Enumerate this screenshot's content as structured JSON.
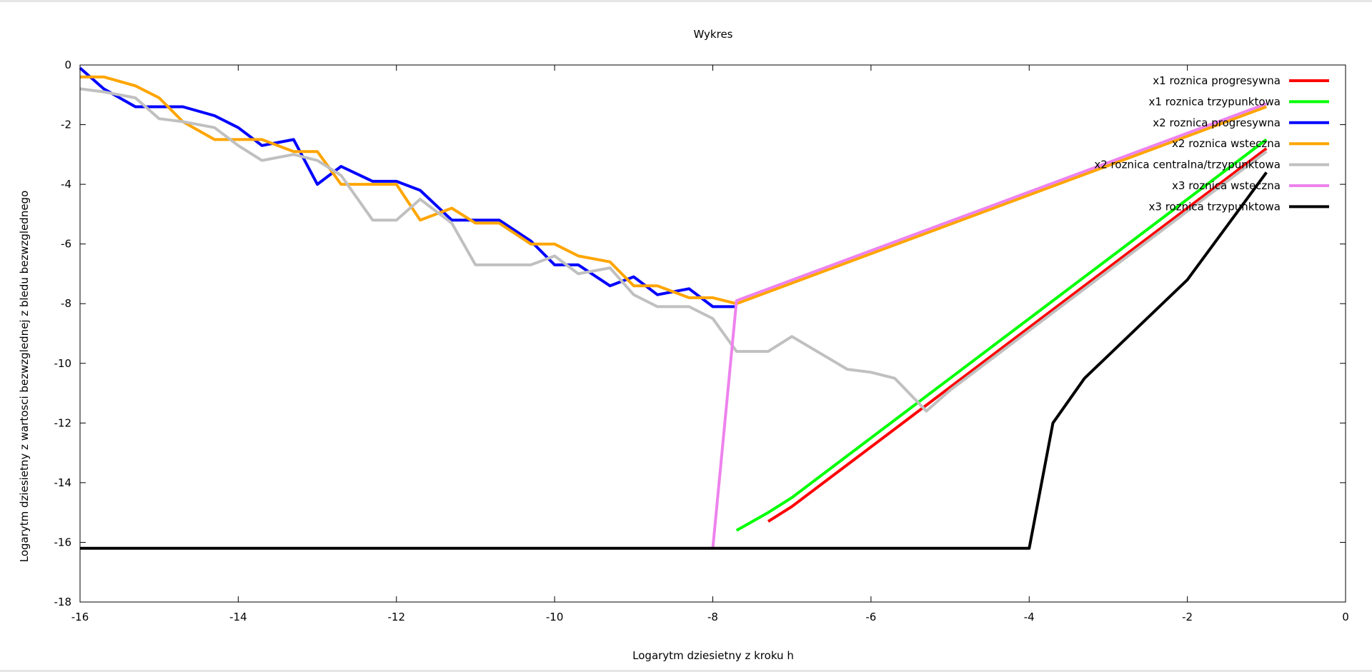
{
  "chart_data": {
    "type": "line",
    "title": "Wykres",
    "xlabel": "Logarytm dziesietny z kroku h",
    "ylabel": "Logarytm dziesietny z wartosci bezwzglednej z bledu bezwzglednego",
    "xlim": [
      -16,
      0
    ],
    "ylim": [
      -18,
      0
    ],
    "xticks": [
      -16,
      -14,
      -12,
      -10,
      -8,
      -6,
      -4,
      -2,
      0
    ],
    "yticks": [
      0,
      -2,
      -4,
      -6,
      -8,
      -10,
      -12,
      -14,
      -16,
      -18
    ],
    "grid": false,
    "legend_position": "top-right",
    "series": [
      {
        "name": "x1 roznica progresywna",
        "color": "#ff0000",
        "points": [
          [
            -7.3,
            -15.3
          ],
          [
            -7.0,
            -14.8
          ],
          [
            -6.0,
            -12.8
          ],
          [
            -5.0,
            -10.8
          ],
          [
            -4.0,
            -8.8
          ],
          [
            -3.0,
            -6.8
          ],
          [
            -2.0,
            -4.8
          ],
          [
            -1.0,
            -2.8
          ]
        ]
      },
      {
        "name": "x1 roznica trzypunktowa",
        "color": "#00ff00",
        "points": [
          [
            -7.7,
            -15.6
          ],
          [
            -7.3,
            -15.0
          ],
          [
            -7.0,
            -14.5
          ],
          [
            -6.0,
            -12.5
          ],
          [
            -5.0,
            -10.5
          ],
          [
            -4.0,
            -8.5
          ],
          [
            -3.0,
            -6.5
          ],
          [
            -2.0,
            -4.5
          ],
          [
            -1.0,
            -2.5
          ]
        ]
      },
      {
        "name": "x2 roznica progresywna",
        "color": "#0000ff",
        "points": [
          [
            -16.0,
            -0.1
          ],
          [
            -15.7,
            -0.8
          ],
          [
            -15.3,
            -1.4
          ],
          [
            -15.0,
            -1.4
          ],
          [
            -14.7,
            -1.4
          ],
          [
            -14.3,
            -1.7
          ],
          [
            -14.0,
            -2.1
          ],
          [
            -13.7,
            -2.7
          ],
          [
            -13.3,
            -2.5
          ],
          [
            -13.0,
            -4.0
          ],
          [
            -12.7,
            -3.4
          ],
          [
            -12.3,
            -3.9
          ],
          [
            -12.0,
            -3.9
          ],
          [
            -11.7,
            -4.2
          ],
          [
            -11.3,
            -5.2
          ],
          [
            -11.0,
            -5.2
          ],
          [
            -10.7,
            -5.2
          ],
          [
            -10.3,
            -5.9
          ],
          [
            -10.0,
            -6.7
          ],
          [
            -9.7,
            -6.7
          ],
          [
            -9.3,
            -7.4
          ],
          [
            -9.0,
            -7.1
          ],
          [
            -8.7,
            -7.7
          ],
          [
            -8.3,
            -7.5
          ],
          [
            -8.0,
            -8.1
          ],
          [
            -7.7,
            -8.1
          ]
        ]
      },
      {
        "name": "x2 roznica wsteczna",
        "color": "#ffa500",
        "points": [
          [
            -16.0,
            -0.4
          ],
          [
            -15.7,
            -0.4
          ],
          [
            -15.3,
            -0.7
          ],
          [
            -15.0,
            -1.1
          ],
          [
            -14.7,
            -1.9
          ],
          [
            -14.3,
            -2.5
          ],
          [
            -14.0,
            -2.5
          ],
          [
            -13.7,
            -2.5
          ],
          [
            -13.3,
            -2.9
          ],
          [
            -13.0,
            -2.9
          ],
          [
            -12.7,
            -4.0
          ],
          [
            -12.3,
            -4.0
          ],
          [
            -12.0,
            -4.0
          ],
          [
            -11.7,
            -5.2
          ],
          [
            -11.3,
            -4.8
          ],
          [
            -11.0,
            -5.3
          ],
          [
            -10.7,
            -5.3
          ],
          [
            -10.3,
            -6.0
          ],
          [
            -10.0,
            -6.0
          ],
          [
            -9.7,
            -6.4
          ],
          [
            -9.3,
            -6.6
          ],
          [
            -9.0,
            -7.4
          ],
          [
            -8.7,
            -7.4
          ],
          [
            -8.3,
            -7.8
          ],
          [
            -8.0,
            -7.8
          ],
          [
            -7.7,
            -8.0
          ],
          [
            -1.0,
            -1.4
          ]
        ]
      },
      {
        "name": "x2 roznica centralna/trzypunktowa",
        "color": "#c0c0c0",
        "points": [
          [
            -16.0,
            -0.8
          ],
          [
            -15.7,
            -0.9
          ],
          [
            -15.3,
            -1.1
          ],
          [
            -15.0,
            -1.8
          ],
          [
            -14.7,
            -1.9
          ],
          [
            -14.3,
            -2.1
          ],
          [
            -14.0,
            -2.7
          ],
          [
            -13.7,
            -3.2
          ],
          [
            -13.3,
            -3.0
          ],
          [
            -13.0,
            -3.2
          ],
          [
            -12.7,
            -3.7
          ],
          [
            -12.3,
            -5.2
          ],
          [
            -12.0,
            -5.2
          ],
          [
            -11.7,
            -4.5
          ],
          [
            -11.3,
            -5.3
          ],
          [
            -11.0,
            -6.7
          ],
          [
            -10.7,
            -6.7
          ],
          [
            -10.3,
            -6.7
          ],
          [
            -10.0,
            -6.4
          ],
          [
            -9.7,
            -7.0
          ],
          [
            -9.3,
            -6.8
          ],
          [
            -9.0,
            -7.7
          ],
          [
            -8.7,
            -8.1
          ],
          [
            -8.3,
            -8.1
          ],
          [
            -8.0,
            -8.5
          ],
          [
            -7.7,
            -9.6
          ],
          [
            -7.3,
            -9.6
          ],
          [
            -7.0,
            -9.1
          ],
          [
            -6.3,
            -10.2
          ],
          [
            -6.0,
            -10.3
          ],
          [
            -5.7,
            -10.5
          ],
          [
            -5.3,
            -11.6
          ],
          [
            -5.0,
            -10.9
          ],
          [
            -4.0,
            -8.9
          ],
          [
            -3.0,
            -6.9
          ],
          [
            -2.0,
            -4.9
          ],
          [
            -1.0,
            -2.9
          ]
        ]
      },
      {
        "name": "x3 roznica wsteczna",
        "color": "#ee82ee",
        "points": [
          [
            -8.0,
            -16.2
          ],
          [
            -7.7,
            -7.9
          ],
          [
            -1.0,
            -1.3
          ]
        ]
      },
      {
        "name": "x3 roznica trzypunktowa",
        "color": "#000000",
        "points": [
          [
            -16.0,
            -16.2
          ],
          [
            -4.0,
            -16.2
          ],
          [
            -3.7,
            -12.0
          ],
          [
            -3.3,
            -10.5
          ],
          [
            -2.0,
            -7.2
          ],
          [
            -1.0,
            -3.6
          ]
        ]
      }
    ]
  }
}
